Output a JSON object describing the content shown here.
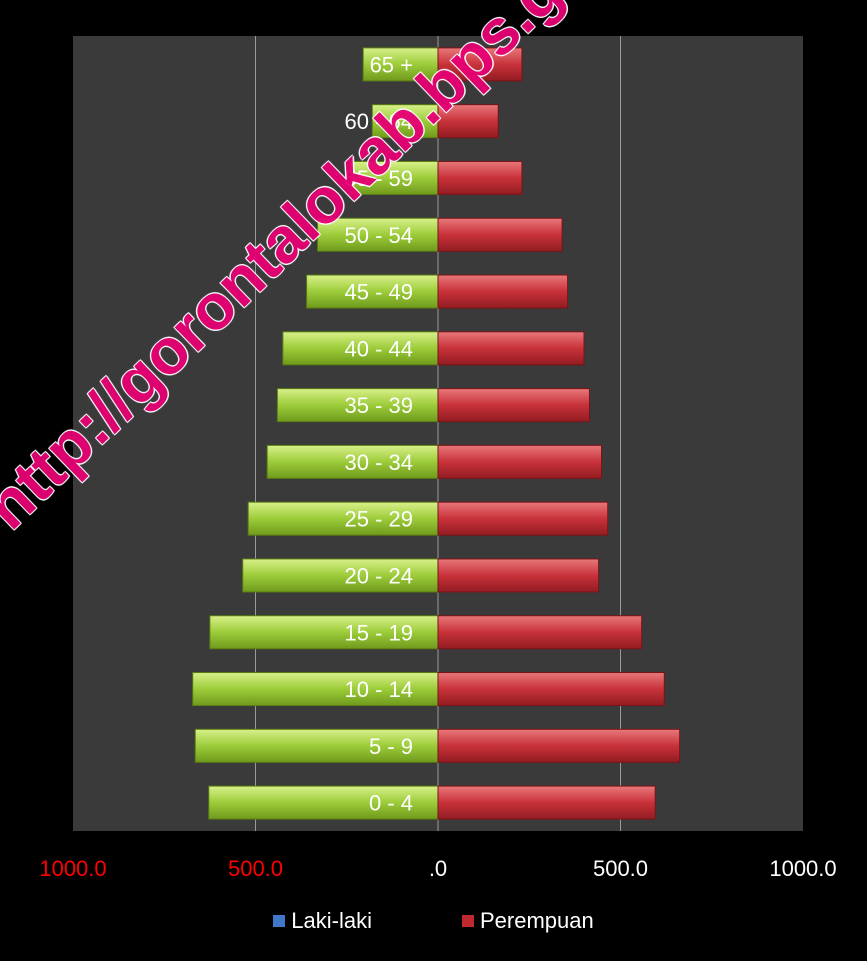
{
  "chart_data": {
    "type": "bar",
    "orientation": "horizontal",
    "categories": [
      "0 - 4",
      "5 - 9",
      "10 - 14",
      "15 - 19",
      "20 - 24",
      "25 - 29",
      "30 - 34",
      "35 - 39",
      "40 - 44",
      "45 - 49",
      "50 - 54",
      "55 - 59",
      "60 - 64",
      "65 +"
    ],
    "series": [
      {
        "name": "Laki-laki",
        "color": "#8fbf2a",
        "values": [
          628,
          665,
          672,
          625,
          535,
          520,
          468,
          440,
          425,
          360,
          330,
          240,
          180,
          205
        ]
      },
      {
        "name": "Perempuan",
        "color": "#c0282d",
        "values": [
          595,
          662,
          620,
          558,
          440,
          465,
          448,
          415,
          400,
          355,
          340,
          230,
          165,
          230
        ]
      }
    ],
    "xlim": [
      -1000,
      1000
    ],
    "xticks": [
      {
        "value": -1000,
        "label": "1000.0",
        "color": "#ff0000"
      },
      {
        "value": -500,
        "label": "500.0",
        "color": "#ff0000"
      },
      {
        "value": 0,
        "label": ".0",
        "color": "#ffffff"
      },
      {
        "value": 500,
        "label": "500.0",
        "color": "#ffffff"
      },
      {
        "value": 1000,
        "label": "1000.0",
        "color": "#ffffff"
      }
    ],
    "grid": true,
    "legend_position": "bottom"
  },
  "legend": {
    "male": "Laki-laki",
    "female": "Perempuan"
  },
  "colors": {
    "background": "#000000",
    "plot_area": "#3a3a3a",
    "gridline": "#9a9a9a",
    "male": "#8fbf2a",
    "female": "#c0282d",
    "legend_male": "#3f78c8",
    "legend_female": "#c0282d"
  },
  "watermark": "http://gorontalokab.bps.go.id"
}
